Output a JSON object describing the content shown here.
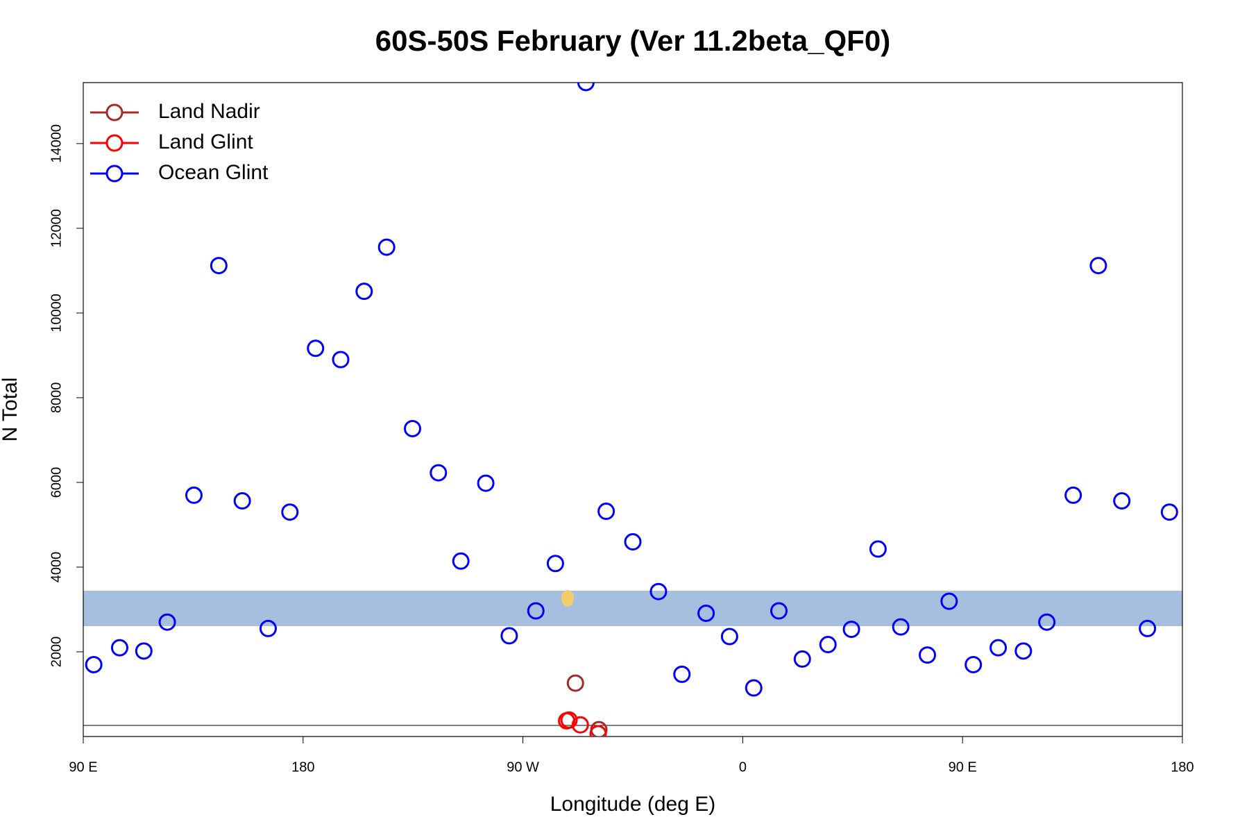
{
  "chart_data": {
    "type": "scatter",
    "title": "60S-50S February (Ver 11.2beta_QF0)",
    "xlabel": "Longitude (deg E)",
    "ylabel": "N Total",
    "xlim": [
      90,
      540
    ],
    "ylim": [
      0,
      15440
    ],
    "xticks": [
      {
        "value": 90,
        "label": "90 E"
      },
      180,
      {
        "value": 270,
        "label": "90 W"
      },
      {
        "value": 360,
        "label": "0"
      },
      {
        "value": 450,
        "label": "90 E"
      },
      {
        "value": 540,
        "label": "180"
      }
    ],
    "yticks": [
      2000,
      4000,
      6000,
      8000,
      10000,
      12000,
      14000
    ],
    "legend": "upper left",
    "series": [
      {
        "name": "Land Nadir",
        "color": "#a52a2a",
        "x": [
          291.5,
          301.1
        ],
        "values": [
          1261,
          161
        ]
      },
      {
        "name": "Land Glint",
        "color": "#ff0000",
        "x": [
          287.9,
          288.9,
          293.5,
          300.8
        ],
        "values": [
          370,
          389,
          275,
          66
        ]
      },
      {
        "name": "Ocean Glint",
        "color": "#0000ff",
        "x": [
          94.3,
          104.9,
          114.8,
          124.4,
          135.3,
          145.5,
          155.1,
          165.7,
          174.6,
          185.1,
          195.4,
          205.0,
          214.2,
          224.8,
          235.4,
          244.6,
          254.8,
          264.4,
          275.3,
          283.3,
          295.8,
          304.1,
          315.0,
          325.5,
          335.1,
          345.0,
          354.6,
          364.5,
          374.8,
          384.4,
          394.9,
          404.5,
          415.4,
          424.7,
          435.6,
          444.5,
          454.4,
          464.6,
          474.9,
          484.5,
          495.3,
          505.6,
          515.2,
          525.7,
          534.7
        ],
        "values": [
          1697,
          2095,
          2019,
          2701,
          5697,
          11120,
          5564,
          2550,
          5299,
          9166,
          8900,
          10512,
          11554,
          7270,
          6227,
          4142,
          5981,
          2379,
          2967,
          4085,
          15441,
          5318,
          4597,
          3422,
          1469,
          2910,
          2360,
          1147,
          2967,
          1829,
          2171,
          2531,
          4427,
          2588,
          1924,
          3194,
          1697,
          2095,
          2019,
          2701,
          5697,
          11120,
          5564,
          2550,
          5299
        ]
      }
    ]
  }
}
